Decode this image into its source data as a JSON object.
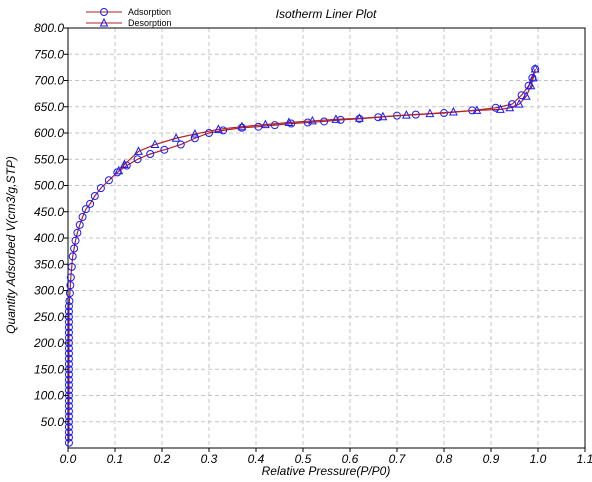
{
  "chart_data": {
    "type": "line",
    "title": "Isotherm Liner Plot",
    "xlabel": "Relative Pressure(P/P0)",
    "ylabel": "Quantity Adsorbed V(cm3/g,STP)",
    "xlim": [
      0.0,
      1.1
    ],
    "ylim": [
      0,
      800
    ],
    "x_ticks": [
      "0.0",
      "0.1",
      "0.2",
      "0.3",
      "0.4",
      "0.5",
      "0.6",
      "0.7",
      "0.8",
      "0.9",
      "1.0",
      "1.1"
    ],
    "y_ticks": [
      "50.0",
      "100.0",
      "150.0",
      "200.0",
      "250.0",
      "300.0",
      "350.0",
      "400.0",
      "450.0",
      "500.0",
      "550.0",
      "600.0",
      "650.0",
      "700.0",
      "750.0",
      "800.0"
    ],
    "grid": true,
    "legend_position": "top-left",
    "series": [
      {
        "name": "Adsorption",
        "color": "#1a1aff",
        "line_color": "#b22222",
        "marker": "circle",
        "x": [
          0.002,
          0.002,
          0.002,
          0.002,
          0.002,
          0.002,
          0.002,
          0.002,
          0.002,
          0.002,
          0.002,
          0.002,
          0.002,
          0.002,
          0.002,
          0.002,
          0.002,
          0.002,
          0.002,
          0.002,
          0.002,
          0.002,
          0.002,
          0.002,
          0.002,
          0.002,
          0.002,
          0.003,
          0.004,
          0.005,
          0.006,
          0.008,
          0.01,
          0.013,
          0.016,
          0.02,
          0.025,
          0.031,
          0.038,
          0.047,
          0.057,
          0.07,
          0.087,
          0.105,
          0.125,
          0.148,
          0.175,
          0.205,
          0.24,
          0.27,
          0.3,
          0.33,
          0.37,
          0.405,
          0.44,
          0.475,
          0.51,
          0.545,
          0.58,
          0.62,
          0.66,
          0.7,
          0.74,
          0.8,
          0.86,
          0.91,
          0.945,
          0.965,
          0.98,
          0.988,
          0.994
        ],
        "y": [
          10,
          20,
          30,
          40,
          50,
          60,
          70,
          80,
          90,
          100,
          110,
          120,
          130,
          140,
          150,
          160,
          170,
          180,
          190,
          200,
          210,
          220,
          230,
          240,
          250,
          260,
          270,
          280,
          295,
          310,
          325,
          345,
          365,
          380,
          395,
          410,
          425,
          440,
          455,
          465,
          480,
          495,
          510,
          525,
          538,
          550,
          560,
          568,
          578,
          590,
          600,
          605,
          610,
          612,
          615,
          618,
          620,
          622,
          625,
          627,
          630,
          633,
          635,
          638,
          643,
          648,
          655,
          672,
          690,
          705,
          722
        ]
      },
      {
        "name": "Desorption",
        "color": "#1a1aff",
        "line_color": "#b22222",
        "marker": "triangle",
        "x": [
          0.994,
          0.99,
          0.985,
          0.975,
          0.96,
          0.94,
          0.92,
          0.87,
          0.82,
          0.77,
          0.72,
          0.67,
          0.62,
          0.57,
          0.52,
          0.47,
          0.42,
          0.37,
          0.32,
          0.27,
          0.23,
          0.185,
          0.15,
          0.12,
          0.108
        ],
        "y": [
          722,
          705,
          690,
          670,
          655,
          648,
          645,
          643,
          640,
          637,
          634,
          631,
          628,
          626,
          623,
          620,
          616,
          612,
          607,
          598,
          590,
          578,
          565,
          540,
          528
        ]
      }
    ]
  }
}
